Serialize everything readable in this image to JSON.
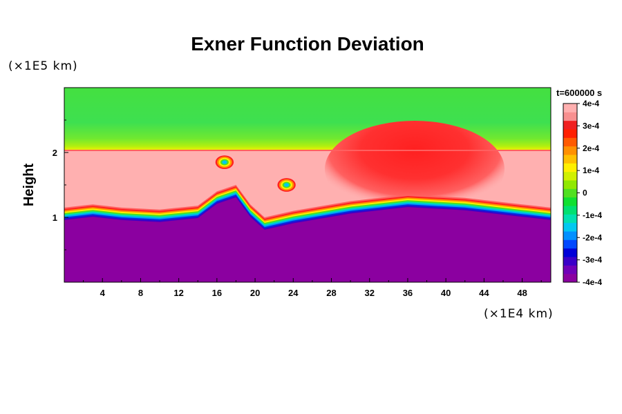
{
  "chart_data": {
    "type": "heatmap",
    "title": "Exner Function Deviation",
    "ylabel": "Height",
    "y_unit": "(×1E5 km)",
    "x_unit": "(×1E4 km)",
    "time_label": "t=600000 s",
    "x_ticks": [
      "4",
      "8",
      "12",
      "16",
      "20",
      "24",
      "28",
      "32",
      "36",
      "40",
      "44",
      "48"
    ],
    "y_ticks": [
      "1",
      "2"
    ],
    "xlim": [
      0,
      51
    ],
    "ylim": [
      0,
      3
    ],
    "colorbar": {
      "labels": [
        "4e-4",
        "3e-4",
        "2e-4",
        "1e-4",
        "0",
        "-1e-4",
        "-2e-4",
        "-3e-4",
        "-4e-4"
      ],
      "range": [
        -0.0004,
        0.0004
      ],
      "colors": [
        "#8b00a0",
        "#7000b8",
        "#3a00c8",
        "#0000d8",
        "#0048ff",
        "#0090ff",
        "#00c8f0",
        "#00e0b0",
        "#00e070",
        "#10e030",
        "#50e020",
        "#90e800",
        "#d0f000",
        "#fff000",
        "#ffc000",
        "#ff9000",
        "#ff5a00",
        "#ff2000",
        "#f02020",
        "#f89090",
        "#ffb0b0"
      ]
    },
    "regions": {
      "upper": "green band (≈0 to -0.5e-4) above height 2",
      "middle": "light pink (≥4e-4) between the interface line and height 2, with red lobe near x=36",
      "lower": "purple (≤-4e-4) below the wavy interface near height 1"
    },
    "interface_line": [
      [
        0,
        1.15
      ],
      [
        3,
        1.2
      ],
      [
        6,
        1.15
      ],
      [
        10,
        1.12
      ],
      [
        14,
        1.18
      ],
      [
        16,
        1.4
      ],
      [
        18,
        1.5
      ],
      [
        19.5,
        1.2
      ],
      [
        21,
        1.0
      ],
      [
        24,
        1.1
      ],
      [
        30,
        1.25
      ],
      [
        36,
        1.35
      ],
      [
        42,
        1.3
      ],
      [
        48,
        1.2
      ],
      [
        51,
        1.15
      ]
    ],
    "bubbles": [
      {
        "x": 23.3,
        "y": 1.5
      },
      {
        "x": 16.8,
        "y": 1.85
      }
    ]
  }
}
